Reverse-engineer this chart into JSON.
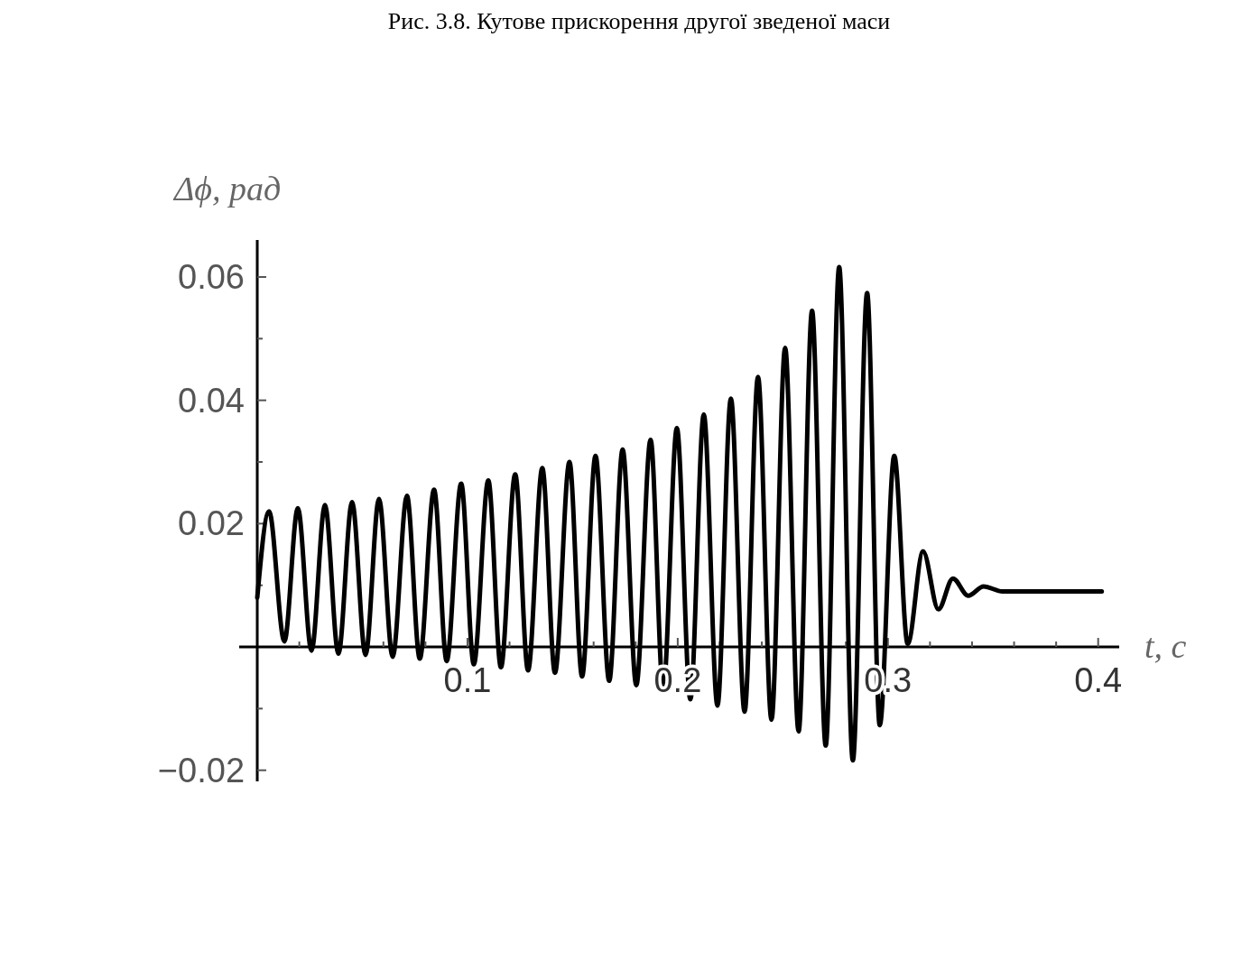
{
  "chart_data": {
    "type": "line",
    "title": "Рис. 3.8. Кутове прискорення другої зведеної маси",
    "xlabel": "t, c",
    "ylabel": "Δϕ, рад",
    "xlim": [
      -0.0086,
      0.41
    ],
    "ylim": [
      -0.0218,
      0.066
    ],
    "xticks": [
      {
        "value": 0.02,
        "label": null
      },
      {
        "value": 0.04,
        "label": null
      },
      {
        "value": 0.06,
        "label": null
      },
      {
        "value": 0.08,
        "label": null
      },
      0.1,
      {
        "value": 0.12,
        "label": null
      },
      {
        "value": 0.14,
        "label": null
      },
      {
        "value": 0.16,
        "label": null
      },
      {
        "value": 0.18,
        "label": null
      },
      0.2,
      {
        "value": 0.22,
        "label": null
      },
      {
        "value": 0.24,
        "label": null
      },
      {
        "value": 0.26,
        "label": null
      },
      {
        "value": 0.28,
        "label": null
      },
      0.3,
      {
        "value": 0.32,
        "label": null
      },
      {
        "value": 0.34,
        "label": null
      },
      {
        "value": 0.36,
        "label": null
      },
      {
        "value": 0.38,
        "label": null
      },
      0.4
    ],
    "yticks": [
      {
        "value": -0.02,
        "label": "−0.02"
      },
      {
        "value": -0.01,
        "label": null
      },
      {
        "value": 0.01,
        "label": null
      },
      0.02,
      {
        "value": 0.03,
        "label": null
      },
      0.04,
      {
        "value": 0.05,
        "label": null
      },
      0.06
    ],
    "grid": false,
    "marker": "none",
    "line_style": "solid",
    "series": [
      {
        "color": "#000000",
        "x": [
          0,
          0.0056,
          0.0129,
          0.0193,
          0.0258,
          0.0322,
          0.0386,
          0.0451,
          0.0515,
          0.0579,
          0.0644,
          0.0712,
          0.0773,
          0.0841,
          0.0901,
          0.097,
          0.103,
          0.1099,
          0.1159,
          0.1227,
          0.1288,
          0.1356,
          0.1416,
          0.1485,
          0.1545,
          0.1609,
          0.1674,
          0.1738,
          0.1803,
          0.1871,
          0.1931,
          0.1996,
          0.206,
          0.2124,
          0.2189,
          0.2253,
          0.2318,
          0.2382,
          0.2446,
          0.2511,
          0.2575,
          0.2639,
          0.2704,
          0.2768,
          0.2833,
          0.2901,
          0.2961,
          0.303,
          0.3094,
          0.3167,
          0.324,
          0.3309,
          0.3382,
          0.3455,
          0.3545,
          0.4017
        ],
        "values": [
          0.008,
          0.022,
          0.0009,
          0.0225,
          -0.0006,
          0.023,
          -0.0011,
          0.0235,
          -0.0013,
          0.024,
          -0.0016,
          0.0245,
          -0.0019,
          0.0255,
          -0.0023,
          0.0265,
          -0.0028,
          0.027,
          -0.0033,
          0.028,
          -0.0038,
          0.029,
          -0.0042,
          0.03,
          -0.0048,
          0.031,
          -0.0055,
          0.032,
          -0.0062,
          0.0336,
          -0.007,
          0.0355,
          -0.0085,
          0.0377,
          -0.0095,
          0.0403,
          -0.0105,
          0.0438,
          -0.0118,
          0.0485,
          -0.0137,
          0.0545,
          -0.016,
          0.0616,
          -0.0184,
          0.0574,
          -0.0127,
          0.031,
          0.0005,
          0.0155,
          0.0061,
          0.0111,
          0.0083,
          0.0098,
          0.009,
          0.009
        ]
      }
    ]
  }
}
